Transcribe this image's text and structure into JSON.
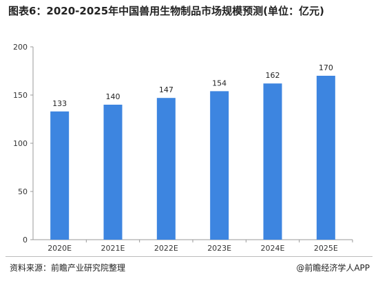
{
  "title": "图表6：2020-2025年中国兽用生物制品市场规模预测(单位：亿元)",
  "source": "资料来源：前瞻产业研究院整理",
  "brand": "@前瞻经济学人APP",
  "colors": {
    "bar": "#3d85e0",
    "axis": "#999999",
    "grid": "#e6e6e6"
  },
  "chart_data": {
    "type": "bar",
    "title": "图表6：2020-2025年中国兽用生物制品市场规模预测(单位：亿元)",
    "categories": [
      "2020E",
      "2021E",
      "2022E",
      "2023E",
      "2024E",
      "2025E"
    ],
    "values": [
      133,
      140,
      147,
      154,
      162,
      170
    ],
    "data_labels": [
      "133",
      "140",
      "147",
      "154",
      "162",
      "170"
    ],
    "y_ticks": [
      0,
      50,
      100,
      150,
      200
    ],
    "ylim": [
      0,
      200
    ],
    "xlabel": "",
    "ylabel": "",
    "grid": false,
    "legend": "none"
  }
}
